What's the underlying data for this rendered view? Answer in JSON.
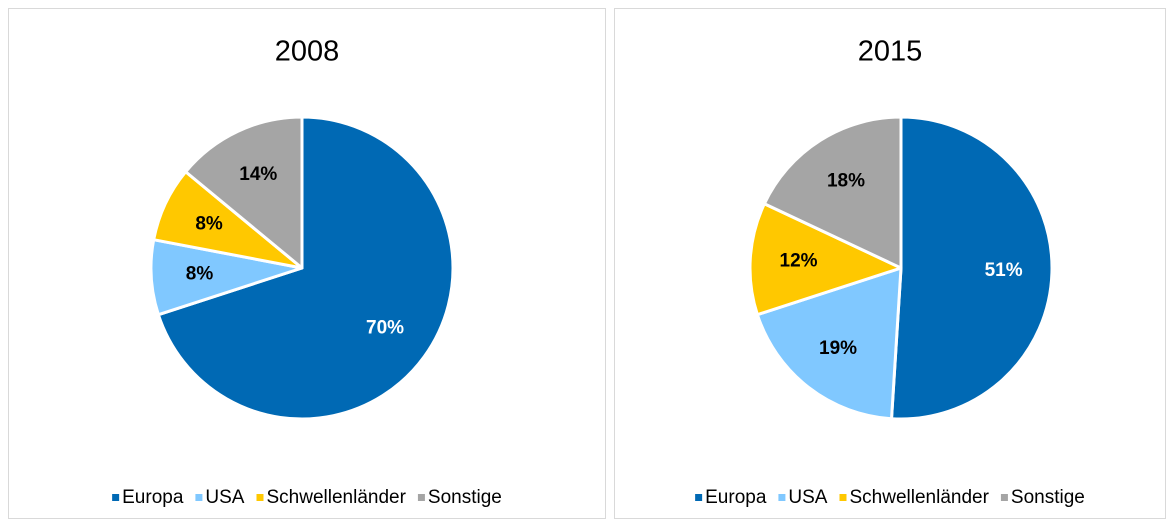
{
  "chart_data": [
    {
      "type": "pie",
      "title": "2008",
      "categories": [
        "Europa",
        "USA",
        "Schwellenländer",
        "Sonstige"
      ],
      "values": [
        70,
        8,
        8,
        14
      ],
      "value_labels": [
        "70%",
        "8%",
        "8%",
        "14%"
      ],
      "colors": [
        "#0069b4",
        "#80c8ff",
        "#ffc800",
        "#a5a5a5"
      ],
      "legend": "bottom"
    },
    {
      "type": "pie",
      "title": "2015",
      "categories": [
        "Europa",
        "USA",
        "Schwellenländer",
        "Sonstige"
      ],
      "values": [
        51,
        19,
        12,
        18
      ],
      "value_labels": [
        "51%",
        "19%",
        "12%",
        "18%"
      ],
      "colors": [
        "#0069b4",
        "#80c8ff",
        "#ffc800",
        "#a5a5a5"
      ],
      "legend": "bottom"
    }
  ]
}
